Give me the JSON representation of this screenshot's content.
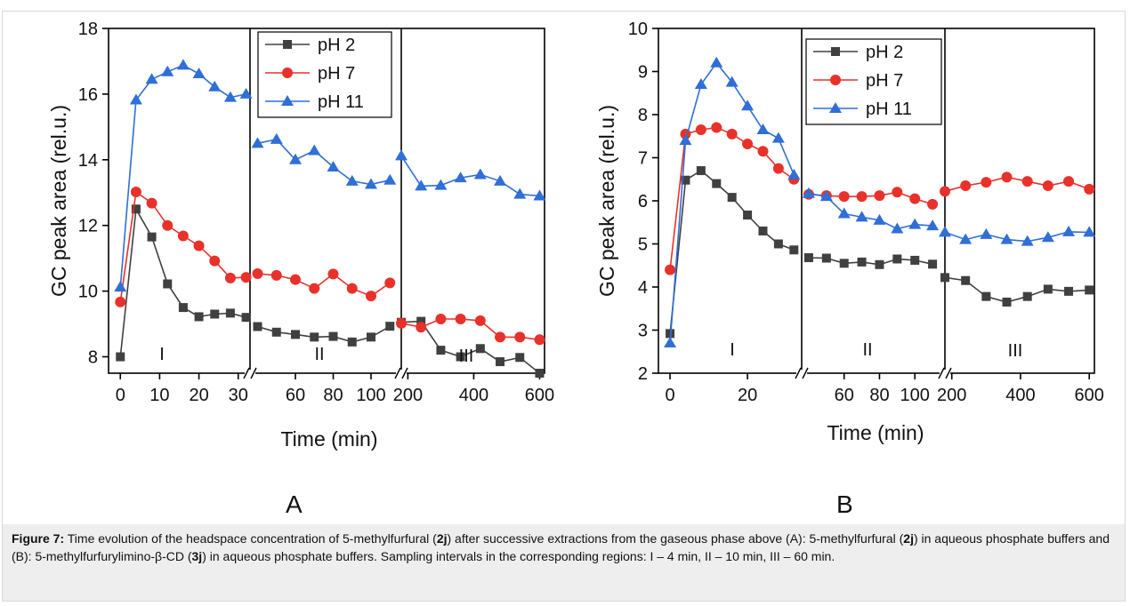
{
  "colors": {
    "pH 2": "#404040",
    "pH 7": "#e8312b",
    "pH 11": "#2f6fd6"
  },
  "caption": {
    "figure_label": "Figure 7:",
    "text_1": " Time evolution of the headspace concentration of 5-methylfurfural (",
    "cmp_1": "2j",
    "text_2": ") after successive extractions from the gaseous phase above (A): 5-methylfurfural (",
    "cmp_2": "2j",
    "text_3": ") in aqueous phosphate buffers and (B): 5-methylfurfurylimino-β-CD (",
    "cmp_3": "3j",
    "text_4": ") in aqueous phosphate buffers. Sampling intervals in the corresponding regions: I – 4 min, II – 10 min, III – 60 min."
  },
  "chart_data": [
    {
      "type": "line",
      "panel": "A",
      "xlabel": "Time (min)",
      "ylabel": "GC peak area (rel.u.)",
      "ylim": [
        7.5,
        18
      ],
      "yticks": [
        8,
        10,
        12,
        14,
        16,
        18
      ],
      "legend_location": "top-center",
      "regions": [
        {
          "label": "I",
          "xlim": [
            -3,
            33
          ],
          "xticks": [
            0,
            10,
            20,
            30
          ]
        },
        {
          "label": "II",
          "xlim": [
            36,
            116
          ],
          "xticks": [
            60,
            80,
            100
          ]
        },
        {
          "label": "III",
          "xlim": [
            180,
            615
          ],
          "xticks": [
            200,
            400,
            600
          ]
        }
      ],
      "series": [
        {
          "name": "pH 2",
          "marker": "square",
          "I": [
            [
              0,
              8.0
            ],
            [
              4,
              12.5
            ],
            [
              8,
              11.65
            ],
            [
              12,
              10.22
            ],
            [
              16,
              9.5
            ],
            [
              20,
              9.22
            ],
            [
              24,
              9.3
            ],
            [
              28,
              9.33
            ],
            [
              32,
              9.2
            ]
          ],
          "II": [
            [
              40,
              8.92
            ],
            [
              50,
              8.75
            ],
            [
              60,
              8.68
            ],
            [
              70,
              8.6
            ],
            [
              80,
              8.62
            ],
            [
              90,
              8.45
            ],
            [
              100,
              8.6
            ],
            [
              110,
              8.93
            ]
          ],
          "III": [
            [
              180,
              9.05
            ],
            [
              240,
              9.08
            ],
            [
              300,
              8.2
            ],
            [
              360,
              8.0
            ],
            [
              420,
              8.25
            ],
            [
              480,
              7.85
            ],
            [
              540,
              7.98
            ],
            [
              600,
              7.5
            ]
          ]
        },
        {
          "name": "pH 7",
          "marker": "circle",
          "I": [
            [
              0,
              9.67
            ],
            [
              4,
              13.02
            ],
            [
              8,
              12.68
            ],
            [
              12,
              12.0
            ],
            [
              16,
              11.68
            ],
            [
              20,
              11.38
            ],
            [
              24,
              10.92
            ],
            [
              28,
              10.4
            ],
            [
              32,
              10.42
            ]
          ],
          "II": [
            [
              40,
              10.53
            ],
            [
              50,
              10.48
            ],
            [
              60,
              10.35
            ],
            [
              70,
              10.08
            ],
            [
              80,
              10.52
            ],
            [
              90,
              10.08
            ],
            [
              100,
              9.85
            ],
            [
              110,
              10.25
            ]
          ],
          "III": [
            [
              180,
              9.02
            ],
            [
              240,
              8.9
            ],
            [
              300,
              9.15
            ],
            [
              360,
              9.15
            ],
            [
              420,
              9.1
            ],
            [
              480,
              8.6
            ],
            [
              540,
              8.6
            ],
            [
              600,
              8.52
            ]
          ]
        },
        {
          "name": "pH 11",
          "marker": "triangle",
          "I": [
            [
              0,
              10.12
            ],
            [
              4,
              15.82
            ],
            [
              8,
              16.45
            ],
            [
              12,
              16.68
            ],
            [
              16,
              16.88
            ],
            [
              20,
              16.62
            ],
            [
              24,
              16.22
            ],
            [
              28,
              15.9
            ],
            [
              32,
              16.0
            ]
          ],
          "II": [
            [
              40,
              14.5
            ],
            [
              50,
              14.62
            ],
            [
              60,
              14.0
            ],
            [
              70,
              14.28
            ],
            [
              80,
              13.78
            ],
            [
              90,
              13.35
            ],
            [
              100,
              13.25
            ],
            [
              110,
              13.38
            ]
          ],
          "III": [
            [
              180,
              14.12
            ],
            [
              240,
              13.2
            ],
            [
              300,
              13.22
            ],
            [
              360,
              13.45
            ],
            [
              420,
              13.55
            ],
            [
              480,
              13.35
            ],
            [
              540,
              12.95
            ],
            [
              600,
              12.9
            ]
          ]
        }
      ]
    },
    {
      "type": "line",
      "panel": "B",
      "xlabel": "Time (min)",
      "ylabel": "GC peak area (rel.u.)",
      "ylim": [
        2,
        10
      ],
      "yticks": [
        2,
        3,
        4,
        5,
        6,
        7,
        8,
        9,
        10
      ],
      "legend_location": "top-right",
      "regions": [
        {
          "label": "I",
          "xlim": [
            -3,
            34
          ],
          "xticks": [
            0,
            20
          ]
        },
        {
          "label": "II",
          "xlim": [
            36,
            117
          ],
          "xticks": [
            60,
            80,
            100
          ]
        },
        {
          "label": "III",
          "xlim": [
            180,
            615
          ],
          "xticks": [
            200,
            400,
            600
          ]
        }
      ],
      "series": [
        {
          "name": "pH 2",
          "marker": "square",
          "I": [
            [
              0,
              2.92
            ],
            [
              4,
              6.48
            ],
            [
              8,
              6.7
            ],
            [
              12,
              6.4
            ],
            [
              16,
              6.08
            ],
            [
              20,
              5.67
            ],
            [
              24,
              5.3
            ],
            [
              28,
              5.0
            ],
            [
              32,
              4.86
            ]
          ],
          "II": [
            [
              40,
              4.68
            ],
            [
              50,
              4.67
            ],
            [
              60,
              4.55
            ],
            [
              70,
              4.58
            ],
            [
              80,
              4.52
            ],
            [
              90,
              4.65
            ],
            [
              100,
              4.62
            ],
            [
              110,
              4.53
            ]
          ],
          "III": [
            [
              180,
              4.22
            ],
            [
              240,
              4.15
            ],
            [
              300,
              3.78
            ],
            [
              360,
              3.65
            ],
            [
              420,
              3.78
            ],
            [
              480,
              3.95
            ],
            [
              540,
              3.9
            ],
            [
              600,
              3.93
            ]
          ]
        },
        {
          "name": "pH 7",
          "marker": "circle",
          "I": [
            [
              0,
              4.4
            ],
            [
              4,
              7.55
            ],
            [
              8,
              7.65
            ],
            [
              12,
              7.7
            ],
            [
              16,
              7.55
            ],
            [
              20,
              7.32
            ],
            [
              24,
              7.15
            ],
            [
              28,
              6.75
            ],
            [
              32,
              6.5
            ]
          ],
          "II": [
            [
              40,
              6.15
            ],
            [
              50,
              6.12
            ],
            [
              60,
              6.1
            ],
            [
              70,
              6.1
            ],
            [
              80,
              6.12
            ],
            [
              90,
              6.2
            ],
            [
              100,
              6.05
            ],
            [
              110,
              5.92
            ]
          ],
          "III": [
            [
              180,
              6.22
            ],
            [
              240,
              6.35
            ],
            [
              300,
              6.43
            ],
            [
              360,
              6.55
            ],
            [
              420,
              6.45
            ],
            [
              480,
              6.35
            ],
            [
              540,
              6.45
            ],
            [
              600,
              6.27
            ]
          ]
        },
        {
          "name": "pH 11",
          "marker": "triangle",
          "I": [
            [
              0,
              2.7
            ],
            [
              4,
              7.4
            ],
            [
              8,
              8.7
            ],
            [
              12,
              9.2
            ],
            [
              16,
              8.75
            ],
            [
              20,
              8.2
            ],
            [
              24,
              7.65
            ],
            [
              28,
              7.45
            ],
            [
              32,
              6.6
            ]
          ],
          "II": [
            [
              40,
              6.17
            ],
            [
              50,
              6.1
            ],
            [
              60,
              5.7
            ],
            [
              70,
              5.62
            ],
            [
              80,
              5.55
            ],
            [
              90,
              5.35
            ],
            [
              100,
              5.45
            ],
            [
              110,
              5.42
            ]
          ],
          "III": [
            [
              180,
              5.27
            ],
            [
              240,
              5.1
            ],
            [
              300,
              5.22
            ],
            [
              360,
              5.1
            ],
            [
              420,
              5.06
            ],
            [
              480,
              5.15
            ],
            [
              540,
              5.28
            ],
            [
              600,
              5.27
            ]
          ]
        }
      ]
    }
  ]
}
